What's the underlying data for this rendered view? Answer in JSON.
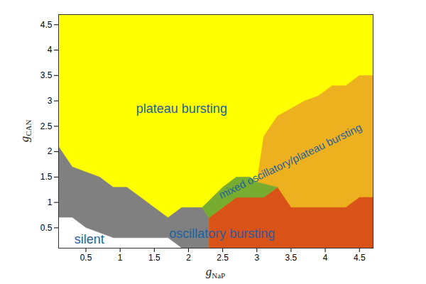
{
  "chart_data": {
    "type": "region",
    "xlabel": {
      "text": "g",
      "subscript": "NaP"
    },
    "ylabel": {
      "text": "g",
      "subscript": "CAN"
    },
    "xlim": [
      0.1,
      4.7
    ],
    "ylim": [
      0.1,
      4.7
    ],
    "xticks": [
      0.5,
      1,
      1.5,
      2,
      2.5,
      3,
      3.5,
      4,
      4.5
    ],
    "yticks": [
      0.5,
      1,
      1.5,
      2,
      2.5,
      3,
      3.5,
      4,
      4.5
    ],
    "regions": [
      {
        "color": "#ffff00",
        "x": [
          0.1,
          4.7,
          4.7,
          0.1
        ],
        "y": [
          0.1,
          0.1,
          4.7,
          4.7
        ]
      },
      {
        "color": "#808080",
        "x": [
          0.1,
          0.1,
          0.3,
          0.5,
          0.7,
          0.9,
          1.1,
          1.3,
          1.5,
          1.7,
          1.9,
          2.1,
          2.2,
          2.3,
          2.3
        ],
        "y": [
          0.1,
          2.1,
          1.7,
          1.6,
          1.5,
          1.3,
          1.3,
          1.1,
          0.9,
          0.7,
          0.9,
          0.9,
          0.9,
          0.7,
          0.1
        ]
      },
      {
        "color": "#ffffff",
        "x": [
          0.1,
          0.1,
          0.3,
          0.5,
          0.9,
          1.7,
          1.9
        ],
        "y": [
          0.1,
          0.7,
          0.7,
          0.5,
          0.3,
          0.3,
          0.1
        ]
      },
      {
        "color": "#edb120",
        "x": [
          3.0,
          3.1,
          3.3,
          3.7,
          3.9,
          4.1,
          4.3,
          4.5,
          4.7,
          4.7,
          4.5,
          4.3,
          3.5,
          3.3
        ],
        "y": [
          1.4,
          2.3,
          2.7,
          3.0,
          3.1,
          3.3,
          3.3,
          3.5,
          3.5,
          1.1,
          1.1,
          0.9,
          0.9,
          1.3
        ]
      },
      {
        "color": "#d95319",
        "x": [
          2.3,
          2.3,
          2.5,
          2.7,
          3.1,
          3.3,
          3.5,
          4.3,
          4.5,
          4.7,
          4.7
        ],
        "y": [
          0.1,
          0.7,
          0.9,
          1.1,
          1.1,
          1.3,
          0.9,
          0.9,
          1.1,
          1.1,
          0.1
        ]
      },
      {
        "color": "#77ac30",
        "x": [
          2.2,
          2.5,
          2.7,
          2.9,
          3.0,
          3.3,
          3.1,
          2.7,
          2.5,
          2.3
        ],
        "y": [
          0.9,
          1.3,
          1.5,
          1.5,
          1.4,
          1.3,
          1.1,
          1.1,
          0.9,
          0.7
        ]
      }
    ],
    "annotations": [
      {
        "text": "plateau bursting",
        "x": 1.9,
        "y": 2.85
      },
      {
        "text": "oscillatory bursting",
        "x": 2.49,
        "y": 0.39
      },
      {
        "text": "silent",
        "x": 0.55,
        "y": 0.27
      },
      {
        "text": "mixed oscillatory/plateau bursting",
        "x": 3.49,
        "y": 1.81
      }
    ]
  }
}
